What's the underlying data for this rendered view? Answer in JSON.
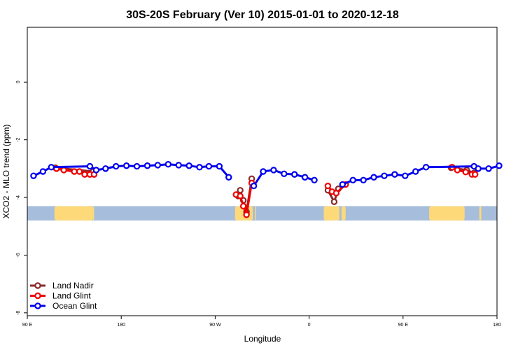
{
  "chart_data": {
    "type": "line",
    "title": "30S-20S February (Ver 10)   2015-01-01 to 2020-12-18",
    "xlabel": "Longitude",
    "ylabel": "XCO2 - MLO trend (ppm)",
    "xlim": [
      90,
      540
    ],
    "ylim": [
      -8.1,
      1.9
    ],
    "x_ticks": [
      {
        "value": 90,
        "label": "90 E"
      },
      {
        "value": 180,
        "label": "180"
      },
      {
        "value": 270,
        "label": "90 W"
      },
      {
        "value": 360,
        "label": "0"
      },
      {
        "value": 450,
        "label": "90 E"
      },
      {
        "value": 540,
        "label": "180"
      }
    ],
    "y_ticks": [
      {
        "value": 0,
        "label": "0"
      },
      {
        "value": -2,
        "label": "-2"
      },
      {
        "value": -4,
        "label": "-4"
      },
      {
        "value": -6,
        "label": "-6"
      },
      {
        "value": -8,
        "label": "-8"
      }
    ],
    "legend_position": "bottom-left",
    "map_strip": {
      "y_range": [
        -4.3,
        -4.8
      ],
      "ocean_color": "#A6BDDB",
      "land_color": "#FDD97A",
      "land_spans": [
        [
          116,
          153
        ],
        [
          153,
          154
        ],
        [
          289,
          306
        ],
        [
          308,
          309
        ],
        [
          374,
          389
        ],
        [
          391,
          395
        ],
        [
          475,
          509
        ],
        [
          523,
          525
        ]
      ]
    },
    "series": [
      {
        "name": "Land Nadir",
        "color": "#8B2A2A",
        "segments": [
          [
            [
              117,
              -2.97
            ],
            [
              153,
              -3.1
            ],
            [
              154,
              -3.2
            ]
          ],
          [
            [
              292,
              -3.95
            ],
            [
              294,
              -3.75
            ],
            [
              297,
              -4.1
            ],
            [
              300,
              -4.5
            ],
            [
              305,
              -3.35
            ]
          ],
          [
            [
              378,
              -3.75
            ],
            [
              384,
              -4.15
            ],
            [
              388,
              -3.7
            ]
          ],
          [
            [
              496,
              -2.97
            ],
            [
              511,
              -3.05
            ],
            [
              518,
              -3.15
            ]
          ]
        ]
      },
      {
        "name": "Land Glint",
        "color": "#EE0000",
        "segments": [
          [
            [
              118,
              -3.0
            ],
            [
              125,
              -3.05
            ],
            [
              135,
              -3.1
            ],
            [
              140,
              -3.1
            ],
            [
              145,
              -3.2
            ],
            [
              150,
              -3.2
            ],
            [
              154,
              -3.2
            ]
          ],
          [
            [
              290,
              -3.9
            ],
            [
              294,
              -3.95
            ],
            [
              297,
              -4.3
            ],
            [
              300,
              -4.6
            ],
            [
              305,
              -3.5
            ]
          ],
          [
            [
              378,
              -3.6
            ],
            [
              382,
              -3.8
            ],
            [
              386,
              -3.85
            ],
            [
              395,
              -3.55
            ]
          ],
          [
            [
              497,
              -2.95
            ],
            [
              502,
              -3.05
            ],
            [
              510,
              -3.12
            ],
            [
              516,
              -3.2
            ],
            [
              519,
              -3.2
            ]
          ]
        ]
      },
      {
        "name": "Ocean Glint",
        "color": "#0000EE",
        "segments": [
          [
            [
              96,
              -3.25
            ],
            [
              105,
              -3.1
            ],
            [
              113,
              -2.95
            ],
            [
              150,
              -2.92
            ],
            [
              156,
              -3.05
            ],
            [
              165,
              -3.0
            ],
            [
              175,
              -2.92
            ],
            [
              185,
              -2.9
            ],
            [
              195,
              -2.92
            ],
            [
              205,
              -2.9
            ],
            [
              215,
              -2.88
            ],
            [
              225,
              -2.85
            ],
            [
              235,
              -2.88
            ],
            [
              245,
              -2.9
            ],
            [
              255,
              -2.95
            ],
            [
              264,
              -2.92
            ],
            [
              274,
              -2.92
            ],
            [
              283,
              -3.3
            ]
          ],
          [
            [
              307,
              -3.6
            ],
            [
              316,
              -3.1
            ],
            [
              326,
              -3.05
            ],
            [
              336,
              -3.18
            ],
            [
              346,
              -3.2
            ],
            [
              356,
              -3.3
            ],
            [
              365,
              -3.4
            ]
          ],
          [
            [
              392,
              -3.55
            ],
            [
              402,
              -3.4
            ],
            [
              412,
              -3.4
            ],
            [
              422,
              -3.3
            ],
            [
              432,
              -3.25
            ],
            [
              442,
              -3.2
            ],
            [
              452,
              -3.25
            ],
            [
              462,
              -3.1
            ],
            [
              472,
              -2.95
            ],
            [
              518,
              -2.92
            ],
            [
              522,
              -3.0
            ],
            [
              532,
              -3.0
            ],
            [
              542,
              -2.9
            ]
          ]
        ]
      }
    ]
  }
}
